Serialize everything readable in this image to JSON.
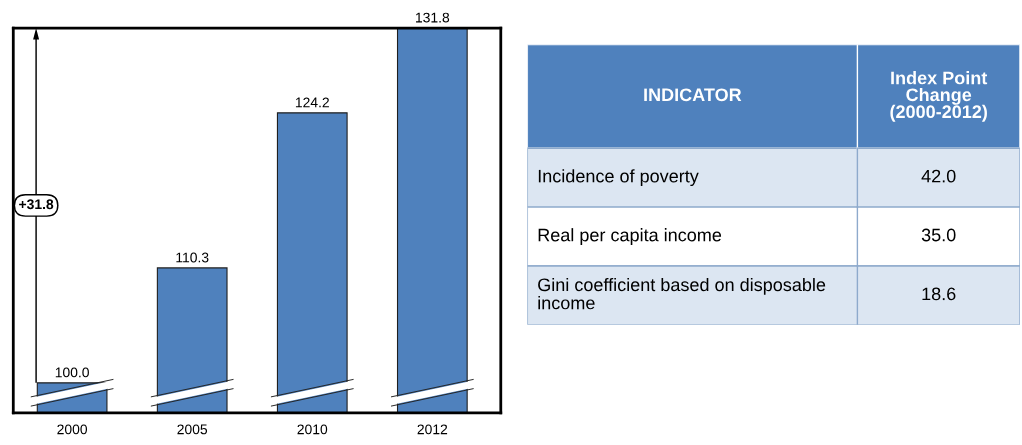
{
  "chart_data": [
    {
      "type": "bar",
      "categories": [
        "2000",
        "2005",
        "2010",
        "2012"
      ],
      "values": [
        100.0,
        110.3,
        124.2,
        131.8
      ],
      "value_labels": [
        "100.0",
        "110.3",
        "124.2",
        "131.8"
      ],
      "color": "#4f81bd",
      "ylim": [
        97.3,
        131.8
      ],
      "tick_labels": "x",
      "grid": false,
      "annotations": [
        "+31.8"
      ]
    },
    {
      "type": "other",
      "categories": [
        "Incidence of poverty",
        "Real per capita income",
        "Gini coefficient based on disposable income"
      ],
      "values": [
        42.0,
        35.0,
        18.6
      ],
      "value_labels": [
        "42.0",
        "35.0",
        "18.6"
      ],
      "annotations": [
        "INDICATOR",
        "Index Point Change (2000-2012)"
      ]
    }
  ]
}
